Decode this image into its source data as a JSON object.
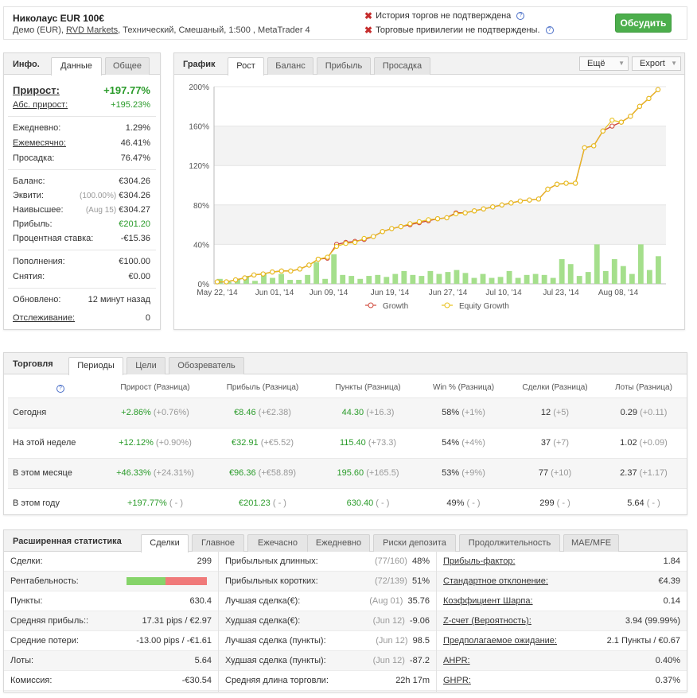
{
  "header": {
    "title": "Николаус EUR 100€",
    "sub_prefix": "Демо (EUR), ",
    "sub_link": "RVD Markets",
    "sub_suffix": ", Технический, Смешаный, 1:500 , MetaTrader 4",
    "warn1": "История торгов не подтверждена",
    "warn2": "Торговые привилегии не подтверждены.",
    "discuss": "Обсудить"
  },
  "info": {
    "title": "Инфо.",
    "tabs": [
      "Данные",
      "Общее"
    ],
    "rows": [
      {
        "label": "Прирост:",
        "value": "+197.77%"
      },
      {
        "label": "Абс. прирост:",
        "value": "+195.23%"
      },
      {
        "label": "Ежедневно:",
        "value": "1.29%"
      },
      {
        "label": "Ежемесячно:",
        "value": "46.41%"
      },
      {
        "label": "Просадка:",
        "value": "76.47%"
      },
      {
        "label": "Баланс:",
        "value": "€304.26"
      },
      {
        "label": "Эквити:",
        "note": "(100.00%)",
        "value": "€304.26"
      },
      {
        "label": "Наивысшее:",
        "note": "(Aug 15)",
        "value": "€304.27"
      },
      {
        "label": "Прибыль:",
        "value": "€201.20"
      },
      {
        "label": "Процентная ставка:",
        "value": "-€15.36"
      },
      {
        "label": "Пополнения:",
        "value": "€100.00"
      },
      {
        "label": "Снятия:",
        "value": "€0.00"
      },
      {
        "label": "Обновлено:",
        "value": "12 минут назад"
      },
      {
        "label": "Отслеживание:",
        "value": "0"
      }
    ]
  },
  "chart_panel": {
    "title": "График",
    "tabs": [
      "Рост",
      "Баланс",
      "Прибыль",
      "Просадка"
    ],
    "more": "Ещё",
    "export": "Export"
  },
  "chart_data": {
    "type": "line",
    "ylim": [
      0,
      200
    ],
    "yticks": [
      "0%",
      "40%",
      "80%",
      "120%",
      "160%",
      "200%"
    ],
    "xticks": [
      "May 22, '14",
      "Jun 01, '14",
      "Jun 09, '14",
      "Jun 19, '14",
      "Jun 27, '14",
      "Jul 10, '14",
      "Jul 23, '14",
      "Aug 08, '14"
    ],
    "series": [
      {
        "name": "Growth",
        "color": "#d04a3c",
        "values": [
          2,
          2,
          4,
          6,
          9,
          10,
          12,
          13,
          13,
          15,
          19,
          25,
          26,
          40,
          42,
          43,
          45,
          48,
          53,
          56,
          58,
          60,
          62,
          64,
          66,
          67,
          72,
          72,
          74,
          76,
          78,
          80,
          82,
          84,
          85,
          86,
          96,
          101,
          102,
          102,
          138,
          140,
          155,
          160,
          164,
          170,
          180,
          188,
          197
        ]
      },
      {
        "name": "Equity Growth",
        "color": "#e8c01c",
        "values": [
          2,
          2,
          4,
          6,
          9,
          10,
          12,
          13,
          13,
          15,
          19,
          25,
          27,
          38,
          41,
          42,
          46,
          48,
          53,
          56,
          58,
          61,
          63,
          65,
          66,
          67,
          71,
          72,
          74,
          76,
          78,
          80,
          82,
          84,
          85,
          86,
          96,
          101,
          102,
          102,
          138,
          140,
          155,
          166,
          164,
          170,
          180,
          188,
          197
        ]
      }
    ],
    "bars": [
      5,
      2,
      5,
      8,
      3,
      10,
      6,
      10,
      4,
      4,
      9,
      22,
      5,
      30,
      9,
      8,
      5,
      8,
      9,
      7,
      10,
      13,
      9,
      8,
      13,
      10,
      12,
      14,
      11,
      6,
      10,
      6,
      7,
      13,
      6,
      9,
      10,
      9,
      6,
      25,
      20,
      8,
      12,
      40,
      13,
      25,
      18,
      10,
      40,
      14,
      28
    ]
  },
  "trading": {
    "title": "Торговля",
    "tabs": [
      "Периоды",
      "Цели",
      "Обозреватель"
    ],
    "headers": [
      "Прирост (Разница)",
      "Прибыль (Разница)",
      "Пункты (Разница)",
      "Win % (Разница)",
      "Сделки (Разница)",
      "Лоты (Разница)"
    ],
    "rows": [
      {
        "label": "Сегодня",
        "c1": "+2.86%",
        "d1": "(+0.76%)",
        "c2": "€8.46",
        "d2": "(+€2.38)",
        "c3": "44.30",
        "d3": "(+16.3)",
        "c4": "58%",
        "d4": "(+1%)",
        "c5": "12",
        "d5": "(+5)",
        "c6": "0.29",
        "d6": "(+0.11)"
      },
      {
        "label": "На этой неделе",
        "c1": "+12.12%",
        "d1": "(+0.90%)",
        "c2": "€32.91",
        "d2": "(+€5.52)",
        "c3": "115.40",
        "d3": "(+73.3)",
        "c4": "54%",
        "d4": "(+4%)",
        "c5": "37",
        "d5": "(+7)",
        "c6": "1.02",
        "d6": "(+0.09)"
      },
      {
        "label": "В этом месяце",
        "c1": "+46.33%",
        "d1": "(+24.31%)",
        "c2": "€96.36",
        "d2": "(+€58.89)",
        "c3": "195.60",
        "d3": "(+165.5)",
        "c4": "53%",
        "d4": "(+9%)",
        "c5": "77",
        "d5": "(+10)",
        "c6": "2.37",
        "d6": "(+1.17)"
      },
      {
        "label": "В этом году",
        "c1": "+197.77%",
        "d1": "( - )",
        "c2": "€201.23",
        "d2": "( - )",
        "c3": "630.40",
        "d3": "( - )",
        "c4": "49%",
        "d4": "( - )",
        "c5": "299",
        "d5": "( - )",
        "c6": "5.64",
        "d6": "( - )"
      }
    ]
  },
  "stats": {
    "title": "Расширенная статистика",
    "tabs": [
      "Сделки",
      "Главное",
      "Ежечасно",
      "Ежедневно",
      "Риски депозита",
      "Продолжительность",
      "MAE/MFE"
    ],
    "profitability": {
      "win_fraction": 0.49,
      "win_color": "#86d46a",
      "loss_color": "#f07a7a"
    },
    "col1": [
      {
        "label": "Сделки:",
        "value": "299"
      },
      {
        "label": "Рентабельность:",
        "value": ""
      },
      {
        "label": "Пункты:",
        "value": "630.4"
      },
      {
        "label": "Средняя прибыль::",
        "value": "17.31 pips / €2.97"
      },
      {
        "label": "Средние потери:",
        "value": "-13.00 pips / -€1.61"
      },
      {
        "label": "Лоты:",
        "value": "5.64"
      },
      {
        "label": "Комиссия:",
        "value": "-€30.54"
      }
    ],
    "col2": [
      {
        "label": "Прибыльных длинных:",
        "note": "(77/160)",
        "value": "48%"
      },
      {
        "label": "Прибыльных коротких:",
        "note": "(72/139)",
        "value": "51%"
      },
      {
        "label": "Лучшая сделка(€):",
        "note": "(Aug 01)",
        "value": "35.76"
      },
      {
        "label": "Худшая сделка(€):",
        "note": "(Jun 12)",
        "value": "-9.06"
      },
      {
        "label": "Лучшая сделка (пункты):",
        "note": "(Jun 12)",
        "value": "98.5"
      },
      {
        "label": "Худшая сделка (пункты):",
        "note": "(Jun 12)",
        "value": "-87.2"
      },
      {
        "label": "Средняя длина торговли:",
        "note": "",
        "value": "22h 17m"
      }
    ],
    "col3": [
      {
        "label": "Прибыль-фактор:",
        "value": "1.84"
      },
      {
        "label": "Стандартное отклонение:",
        "value": "€4.39"
      },
      {
        "label": "Коэффициент Шарпа:",
        "value": "0.14"
      },
      {
        "label": "Z-счет (Вероятность):",
        "value": "3.94 (99.99%)"
      },
      {
        "label": "Предполагаемое ожидание:",
        "value": "2.1 Пункты / €0.67"
      },
      {
        "label": "AHPR:",
        "value": "0.40%"
      },
      {
        "label": "GHPR:",
        "value": "0.37%"
      }
    ]
  }
}
